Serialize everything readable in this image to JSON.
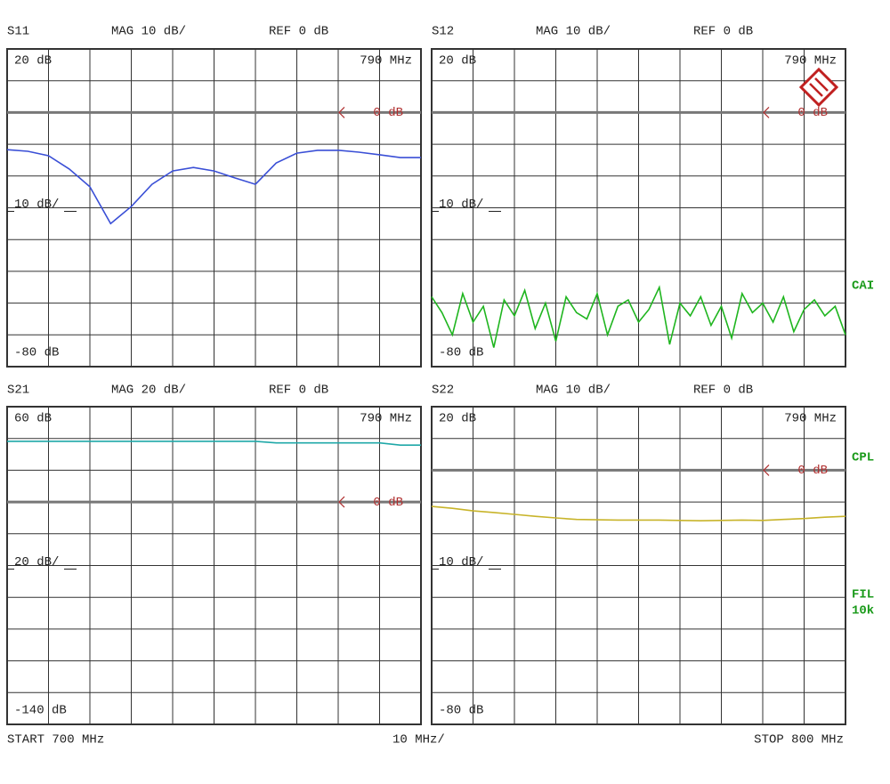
{
  "chart_data": [
    {
      "type": "line",
      "title": "S11",
      "format": "MAG 10 dB/",
      "ref_label": "REF 0 dB",
      "ref_level": 0,
      "marker_freq": "790 MHz",
      "marker_label": "0 dB",
      "scale_label": "10 dB/",
      "xlim": [
        700,
        800
      ],
      "ylim": [
        -80,
        20
      ],
      "yticks": [
        {
          "value": 20,
          "label": "20 dB"
        },
        {
          "value": -80,
          "label": "-80 dB"
        }
      ],
      "x": [
        700,
        705,
        710,
        715,
        720,
        725,
        730,
        735,
        740,
        745,
        750,
        755,
        760,
        765,
        770,
        775,
        780,
        785,
        790,
        795,
        800
      ],
      "values": [
        -11.7,
        -12.2,
        -13.6,
        -17.8,
        -23.4,
        -35,
        -29.6,
        -22.6,
        -18.4,
        -17.3,
        -18.4,
        -20.6,
        -22.6,
        -15.9,
        -12.8,
        -11.9,
        -11.9,
        -12.5,
        -13.3,
        -14.2,
        -14.2
      ],
      "color": "#3a4fd6"
    },
    {
      "type": "line",
      "title": "S12",
      "format": "MAG 10 dB/",
      "ref_label": "REF 0 dB",
      "ref_level": 0,
      "marker_freq": "790 MHz",
      "marker_label": "0 dB",
      "scale_label": "10 dB/",
      "xlim": [
        700,
        800
      ],
      "ylim": [
        -80,
        20
      ],
      "yticks": [
        {
          "value": 20,
          "label": "20 dB"
        },
        {
          "value": -80,
          "label": "-80 dB"
        }
      ],
      "x": [
        700,
        702.5,
        705,
        707.5,
        710,
        712.5,
        715,
        717.5,
        720,
        722.5,
        725,
        727.5,
        730,
        732.5,
        735,
        737.5,
        740,
        742.5,
        745,
        747.5,
        750,
        752.5,
        755,
        757.5,
        760,
        762.5,
        765,
        767.5,
        770,
        772.5,
        775,
        777.5,
        780,
        782.5,
        785,
        787.5,
        790,
        792.5,
        795,
        797.5,
        800
      ],
      "values": [
        -58,
        -63,
        -70,
        -57,
        -66,
        -61,
        -74,
        -59,
        -64,
        -56,
        -68,
        -60,
        -72,
        -58,
        -63,
        -65,
        -57,
        -70,
        -61,
        -59,
        -66,
        -62,
        -55,
        -73,
        -60,
        -64,
        -58,
        -67,
        -61,
        -71,
        -57,
        -63,
        -60,
        -66,
        -58,
        -69,
        -62,
        -59,
        -64,
        -61,
        -70
      ],
      "color": "#1fb51f"
    },
    {
      "type": "line",
      "title": "S21",
      "format": "MAG 20 dB/",
      "ref_label": "REF 0 dB",
      "ref_level": 0,
      "marker_freq": "790 MHz",
      "marker_label": "0 dB",
      "scale_label": "20 dB/",
      "xlim": [
        700,
        800
      ],
      "ylim": [
        -140,
        60
      ],
      "yticks": [
        {
          "value": 60,
          "label": "60 dB"
        },
        {
          "value": -140,
          "label": "-140 dB"
        }
      ],
      "x": [
        700,
        705,
        710,
        715,
        720,
        725,
        730,
        735,
        740,
        745,
        750,
        755,
        760,
        765,
        770,
        775,
        780,
        785,
        790,
        795,
        800
      ],
      "values": [
        38.2,
        38.2,
        38.2,
        38.2,
        38.2,
        38.2,
        38.2,
        38.2,
        38.2,
        38.2,
        38.2,
        38.2,
        38.2,
        37.2,
        37.2,
        37.2,
        37.2,
        37.2,
        37.2,
        35.8,
        35.8
      ],
      "color": "#1fa8a8"
    },
    {
      "type": "line",
      "title": "S22",
      "format": "MAG 10 dB/",
      "ref_label": "REF 0 dB",
      "ref_level": 0,
      "marker_freq": "790 MHz",
      "marker_label": "0 dB",
      "scale_label": "10 dB/",
      "xlim": [
        700,
        800
      ],
      "ylim": [
        -80,
        20
      ],
      "yticks": [
        {
          "value": 20,
          "label": "20 dB"
        },
        {
          "value": -80,
          "label": "-80 dB"
        }
      ],
      "x": [
        700,
        705,
        710,
        715,
        720,
        725,
        730,
        735,
        740,
        745,
        750,
        755,
        760,
        765,
        770,
        775,
        780,
        785,
        790,
        795,
        800
      ],
      "values": [
        -11.4,
        -12.0,
        -12.8,
        -13.3,
        -13.9,
        -14.5,
        -15.0,
        -15.5,
        -15.6,
        -15.7,
        -15.7,
        -15.7,
        -15.8,
        -15.9,
        -15.8,
        -15.7,
        -15.8,
        -15.5,
        -15.2,
        -14.8,
        -14.5
      ],
      "color": "#c8b42a"
    }
  ],
  "footer": {
    "start": "START  700 MHz",
    "span": "10 MHz/",
    "stop": "STOP 800 MHz"
  },
  "side_labels": [
    "CAI",
    "CPL",
    "FIL",
    "10k"
  ]
}
